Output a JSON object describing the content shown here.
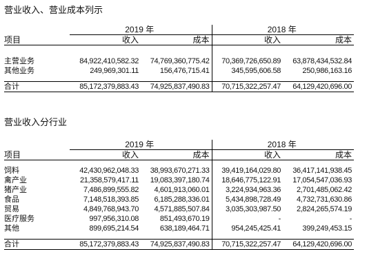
{
  "section1": {
    "title": "营业收入、营业成本列示",
    "year_a": "2019 年",
    "year_b": "2018 年",
    "col_item": "项目",
    "col_revenue": "收入",
    "col_cost": "成本",
    "rows": [
      {
        "label": "主营业务",
        "rev_2019": "84,922,410,582.32",
        "cost_2019": "74,769,360,775.42",
        "rev_2018": "70,369,726,650.89",
        "cost_2018": "63,878,434,532.84"
      },
      {
        "label": "其他业务",
        "rev_2019": "249,969,301.11",
        "cost_2019": "156,476,715.41",
        "rev_2018": "345,595,606.58",
        "cost_2018": "250,986,163.16"
      }
    ],
    "total": {
      "label": "合计",
      "rev_2019": "85,172,379,883.43",
      "cost_2019": "74,925,837,490.83",
      "rev_2018": "70,715,322,257.47",
      "cost_2018": "64,129,420,696.00"
    }
  },
  "section2": {
    "title": "营业收入分行业",
    "year_a": "2019 年",
    "year_b": "2018 年",
    "col_item": "项目",
    "col_revenue": "收入",
    "col_cost": "成本",
    "rows": [
      {
        "label": "饲料",
        "rev_2019": "42,430,962,048.33",
        "cost_2019": "38,993,670,271.33",
        "rev_2018": "39,419,164,029.80",
        "cost_2018": "36,417,141,938.45"
      },
      {
        "label": "禽产业",
        "rev_2019": "21,358,579,417.11",
        "cost_2019": "19,083,397,180.74",
        "rev_2018": "18,646,775,122.91",
        "cost_2018": "17,054,547,036.93"
      },
      {
        "label": "猪产业",
        "rev_2019": "7,486,899,555.82",
        "cost_2019": "4,601,913,060.01",
        "rev_2018": "3,224,934,963.36",
        "cost_2018": "2,701,485,062.42"
      },
      {
        "label": "食品",
        "rev_2019": "7,148,518,393.85",
        "cost_2019": "6,185,288,336.01",
        "rev_2018": "5,434,898,728.49",
        "cost_2018": "4,732,731,630.86"
      },
      {
        "label": "贸易",
        "rev_2019": "4,849,768,943.70",
        "cost_2019": "4,571,885,507.84",
        "rev_2018": "3,035,303,987.50",
        "cost_2018": "2,824,265,574.19"
      },
      {
        "label": "医疗服务",
        "rev_2019": "997,956,310.08",
        "cost_2019": "851,493,670.19",
        "rev_2018": "-",
        "cost_2018": "-"
      },
      {
        "label": "其他",
        "rev_2019": "899,695,214.54",
        "cost_2019": "638,189,464.71",
        "rev_2018": "954,245,425.41",
        "cost_2018": "399,249,453.15"
      }
    ],
    "total": {
      "label": "合计",
      "rev_2019": "85,172,379,883.43",
      "cost_2019": "74,925,837,490.83",
      "rev_2018": "70,715,322,257.47",
      "cost_2018": "64,129,420,696.00"
    }
  }
}
